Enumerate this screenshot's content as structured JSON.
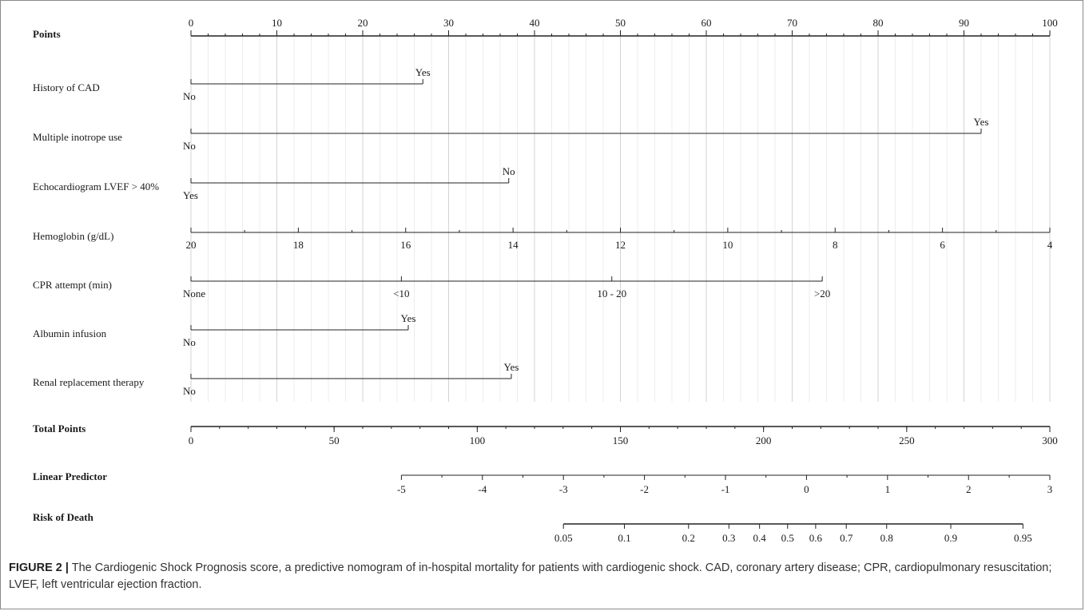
{
  "chart_data": {
    "type": "nomogram",
    "points_axis": {
      "label": "Points",
      "range": [
        0,
        100
      ],
      "ticks": [
        0,
        10,
        20,
        30,
        40,
        50,
        60,
        70,
        80,
        90,
        100
      ],
      "minor_step": 2
    },
    "predictors": [
      {
        "name": "History of CAD",
        "kind": "categorical",
        "levels": [
          {
            "label": "No",
            "points": 0,
            "side": "below"
          },
          {
            "label": "Yes",
            "points": 27,
            "side": "above"
          }
        ]
      },
      {
        "name": "Multiple inotrope use",
        "kind": "categorical",
        "levels": [
          {
            "label": "No",
            "points": 0,
            "side": "below"
          },
          {
            "label": "Yes",
            "points": 92,
            "side": "above"
          }
        ]
      },
      {
        "name": "Echocardiogram LVEF > 40%",
        "kind": "categorical",
        "levels": [
          {
            "label": "Yes",
            "points": 0,
            "side": "below"
          },
          {
            "label": "No",
            "points": 37,
            "side": "above"
          }
        ]
      },
      {
        "name": "Hemoglobin (g/dL)",
        "kind": "continuous",
        "range_points": [
          0,
          100
        ],
        "ticks": [
          {
            "label": "20",
            "points": 0
          },
          {
            "label": "18",
            "points": 12.5
          },
          {
            "label": "16",
            "points": 25
          },
          {
            "label": "14",
            "points": 37.5
          },
          {
            "label": "12",
            "points": 50
          },
          {
            "label": "10",
            "points": 62.5
          },
          {
            "label": "8",
            "points": 75
          },
          {
            "label": "6",
            "points": 87.5
          },
          {
            "label": "4",
            "points": 100
          }
        ],
        "minor_points": [
          6.25,
          18.75,
          31.25,
          43.75,
          56.25,
          68.75,
          81.25,
          93.75
        ]
      },
      {
        "name": "CPR attempt (min)",
        "kind": "categorical",
        "levels": [
          {
            "label": "None",
            "points": 0,
            "side": "below"
          },
          {
            "label": "<10",
            "points": 24.5,
            "side": "below"
          },
          {
            "label": "10 - 20",
            "points": 49,
            "side": "below"
          },
          {
            "label": ">20",
            "points": 73.5,
            "side": "below"
          }
        ]
      },
      {
        "name": "Albumin infusion",
        "kind": "categorical",
        "levels": [
          {
            "label": "No",
            "points": 0,
            "side": "below"
          },
          {
            "label": "Yes",
            "points": 25.3,
            "side": "above"
          }
        ]
      },
      {
        "name": "Renal replacement therapy",
        "kind": "categorical",
        "levels": [
          {
            "label": "No",
            "points": 0,
            "side": "below"
          },
          {
            "label": "Yes",
            "points": 37.3,
            "side": "above"
          }
        ]
      }
    ],
    "total_points_axis": {
      "label": "Total Points",
      "range": [
        0,
        300
      ],
      "ticks": [
        0,
        50,
        100,
        150,
        200,
        250,
        300
      ],
      "minor_step": 10
    },
    "linear_predictor_axis": {
      "label": "Linear Predictor",
      "total_points_range": [
        73.5,
        300
      ],
      "ticks": [
        {
          "label": "-5",
          "total": 73.5
        },
        {
          "label": "-4",
          "total": 101.8
        },
        {
          "label": "-3",
          "total": 130.1
        },
        {
          "label": "-2",
          "total": 158.4
        },
        {
          "label": "-1",
          "total": 186.7
        },
        {
          "label": "0",
          "total": 215.0
        },
        {
          "label": "1",
          "total": 243.3
        },
        {
          "label": "2",
          "total": 271.6
        },
        {
          "label": "3",
          "total": 300
        }
      ]
    },
    "risk_axis": {
      "label": "Risk of Death",
      "total_points_range": [
        130.1,
        290.6
      ],
      "ticks": [
        {
          "label": "0.05",
          "total": 130.1
        },
        {
          "label": "0.1",
          "total": 151.4
        },
        {
          "label": "0.2",
          "total": 173.8
        },
        {
          "label": "0.3",
          "total": 187.9
        },
        {
          "label": "0.4",
          "total": 198.6
        },
        {
          "label": "0.5",
          "total": 208.4
        },
        {
          "label": "0.6",
          "total": 218.2
        },
        {
          "label": "0.7",
          "total": 228.9
        },
        {
          "label": "0.8",
          "total": 243.0
        },
        {
          "label": "0.9",
          "total": 265.4
        },
        {
          "label": "0.95",
          "total": 290.6
        }
      ]
    },
    "grid": true
  },
  "caption": {
    "label": "FIGURE 2 |",
    "text": "The Cardiogenic Shock Prognosis score, a predictive nomogram of in-hospital mortality for patients with cardiogenic shock. CAD, coronary artery disease; CPR, cardiopulmonary resuscitation; LVEF, left ventricular ejection fraction."
  }
}
